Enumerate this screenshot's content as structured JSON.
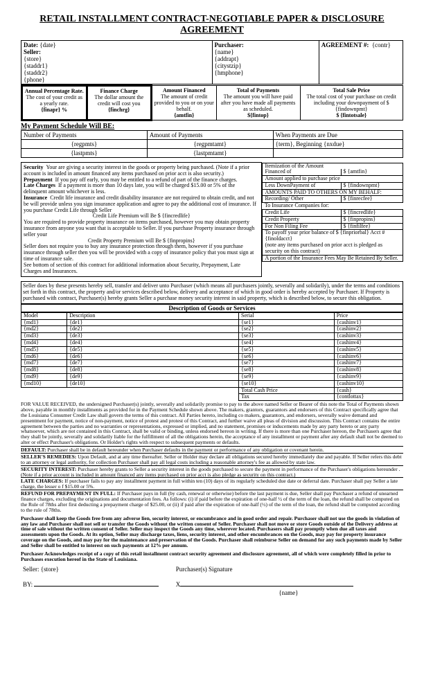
{
  "title": "RETAIL INSTALLMENT CONTRACT-NEGOTIABLE PAPER & DISCLOSURE AGREEMENT",
  "top": {
    "date_label": "Date:",
    "date": "{date}",
    "seller_label": "Seller:",
    "store": "{store}",
    "staddr1": "{staddr1}",
    "staddr2": "{staddr2}",
    "phone": "{phone}",
    "purchaser_label": "Purchaser:",
    "name": "{name}",
    "addrapt": "{addrapt}",
    "citystzip": "{citystzip}",
    "hmphone": "{hmphone}",
    "agreement_label": "AGREEMENT #:",
    "contr": "{contr}"
  },
  "fed": {
    "apr_title": "Annual Percentage Rate.",
    "apr_desc": "The cost of your credit as a yearly rate.",
    "apr_val": "{finapr}  %",
    "fc_title": "Finance Charge",
    "fc_desc": "The dollar amount the credit will cost you",
    "fc_val": "{finchrg}",
    "af_title": "Amount Financed",
    "af_desc": "The amount of credit provided to you or on your behalf.",
    "af_val": "{amtfin}",
    "top_title": "Total of Payments",
    "top_desc": "The amount you will have paid after you have made all payments as scheduled.",
    "top_val": "${fintop}",
    "tsp_title": "Total Sale Price",
    "tsp_desc": "The total cost of your purchase on credit including your downpayment of $ {findownpmt}",
    "tsp_val": "$ {fintotsale}"
  },
  "sched": {
    "header": "My Payment Schedule Will BE:",
    "col1": "Number of Payments",
    "col2": "Amount of Payments",
    "col3": "When Payments are Due",
    "r1a": "{regpmts}",
    "r1b": "{regpmtamt}",
    "r1c_a": "{term}",
    "r1c_b": ", Beginning ",
    "r1c_c": "{nxdue}",
    "r2a": "{lastpmts}",
    "r2b": "{lastpmtamt}"
  },
  "sec": {
    "security_l": "Security",
    "security": "Your are giving a security interest in the goods or property being purchased.  (Note if a prior account is included in amount financed any items purchased on prior acct is also security.)",
    "prepay_l": "Prepayment",
    "prepay": "If you pay off early, you may be entitled to a refund of part of the finance charges.",
    "late_l": "Late Charges",
    "late": "If a payment is more than 10 days late, you will be charged $15.00 or 5% of the delinquent amount whichever is less.",
    "ins_l": "Insurance",
    "ins1": "Credit life insurance and credit disability insurance are not required to obtain credit, and not be will provide unless you sign insurance application  and agree to pay the additional cost of insurance.      If you purchase Credit Life through Seller",
    "clife": "Credit Life Premium will Be  $ {fincredlife}",
    "ins2": "You are required to provide property insurance on items purchased, however you may obtain property insurance from anyone you want that is acceptable to Seller.   If you purchase Property insurance through seller your",
    "cprop": "Credit Property Premium will Be  $ {finpropins}",
    "ins3": "Seller does not require you to buy any insurance protection through them, however if you purchase insurance through seller then you will be provided with a copy of insurance policy that you must sign at time of insurance sale.",
    "ins4": "See bottom of section of this contract for additional information about Security, Prepayment, Late Charges and Insurances."
  },
  "item": {
    "h1": "Itemization of the Amount",
    "h2a": "Financed of",
    "h2b": "$     {amtfin}",
    "r1": "Amount applied to purchase price",
    "r2a": "Less DownPayment of",
    "r2b": "$  {findownpmt}",
    "r3": "AMOUNTS PAID TO OTHERS ON MY BEHALF:",
    "r4a": "Recording/ Other",
    "r4b": "$ {finrecfee}",
    "r5": "To Insurance Companies for:",
    "r6a": "Credit Life",
    "r6b": "$  {fincredlife}",
    "r7a": "Credit Property",
    "r7b": "$  {finpropins}",
    "r8a": "For Non Filing  Fee",
    "r8b": "$ {finfilfee}",
    "r9": "To payoff your prior balance of  $ {finpriorbal} Acct # {finoldacct}",
    "r10": "(note any items purchased on prior acct is pledged as security on this contract)",
    "r11": "A portion of the Insurance Fees May Be Retained By Seller."
  },
  "grant": "Seller does by these presents hereby sell, transfer and deliver unto Purchaser (which means all purchasers jointly, severally and solidarily), under the terms and conditions set forth in this contract, the property and/or services described below, delivery and acceptance of which in good order is hereby accepted by Purchaser.  If Property is purchased with contract, Purchaser(s) hereby grants Seller a purchase money security interest in said property, which is described below, to secure this obligation.",
  "goods": {
    "header": "Description of Goods or Services",
    "cols": {
      "model": "Model",
      "desc": "Description",
      "serial": "Serial",
      "price": "Price"
    },
    "rows": [
      {
        "m": "{md1}",
        "d": "{de1}",
        "s": "{se1}",
        "p": "{cashinv1}"
      },
      {
        "m": "{md2}",
        "d": "{de2}",
        "s": "{se2}",
        "p": "{cashinv2}"
      },
      {
        "m": "{md3}",
        "d": "{de3}",
        "s": "{se3}",
        "p": "{cashinv3}"
      },
      {
        "m": "{md4}",
        "d": "{de4}",
        "s": "{se4}",
        "p": "{cashinv4}"
      },
      {
        "m": "{md5}",
        "d": "{de5}",
        "s": "{se5}",
        "p": "{cashinv5}"
      },
      {
        "m": "{md6}",
        "d": "{de6}",
        "s": "{se6}",
        "p": "{cashinv6}"
      },
      {
        "m": "{md7}",
        "d": "{de7}",
        "s": "{se7}",
        "p": "{cashinv7}"
      },
      {
        "m": "{md8}",
        "d": "{de8}",
        "s": "{se8}",
        "p": "{cashinv8}"
      },
      {
        "m": "{md9}",
        "d": "{de9}",
        "s": "{se9}",
        "p": "{cashinv9}"
      },
      {
        "m": "{md10}",
        "d": "{de10}",
        "s": "{se10}",
        "p": "{cashinv10}"
      }
    ],
    "tcp_l": "Total Cash Price",
    "tcp": "{cash}",
    "tax_l": "Tax",
    "tax": "{contlottax}"
  },
  "legal": {
    "p1": "FOR VALUE RECEIVED, the undersigned Purchaser(s) jointly, severally and solidarily promise to pay to the above named Seller or Bearer of this note the Total of Payments shown above, payable in monthly installments as provided for in the  Payment Schedule shown above.  The makers, grantors, guarantors and endorsers of this Contract specifically agree that the Louisiana Consumer Credit Law shall govern the terms of this contract.  All Parties hereto, including co makers, guarantors, and endorsers, severally waive demand and presentment for payment, notice of non-payment, notice of protest and protest of this Contract, and further waive all pleas of division and discussion.  This Contract contains the entire agreement between the parties and no warranties or representations, expressed or implied, and no statement, promises or  inducements made by any party hereto or any party whatsoever, which are not contained in this Contract, shall be valid or binding, unless endorsed hereon in writing.  If there is more than one Purchaser hereon, the Purchasers agree that they shall be jointly, severally and solidarily liable for the fulfillment of all the obligations herein, the acceptance of any installment or payment after any default shall not be deemed to alter or effect Purchaser's obligations. Or Holder's rights with respect to subsequent payments or defaults.",
    "p2l": "DEFAULT:",
    "p2": "Purchaser shall be in default hereunder when Purchaser defaults in the payment or performance of any obligation or covenant herein.",
    "p3l": "SELLER'S REMEDIES:",
    "p3": "Upon Default, and at any time thereafter. Seller or Holder may declare all obligations secured hereby immediately due and payable.  If Seller refers this debt to an attorney or legal authority, for collection Purchaser shall pay all legal costs including a reasonable attorney's fee as allowed by state law.",
    "p4l": "SECURITY INTEREST:",
    "p4": "Purchaser hereby grants to Seller a security interest in the goods purchased to secure the payment in performance of the Purchaser's obligations hereunder . (Note if a prior account is included in amount financed any items purchased on prior acct is also pledge as security on this contract.)",
    "p5l": "LATE CHARGES:",
    "p5": "If purchaser fails to pay any installment payment in full within ten (10) days of its regularly scheduled due date or deferral date. Purchaser shall pay Seller a late charge, the lesser o f $15.00 or 5%.",
    "p6l": "REFUND FOR PREPAYMENT IN FULL:",
    "p6": "If Purchaser pays in full (by cash, renewal or otherwise) before the last payment is due, Seller shall pay Purchaser a refund of unearned finance charges, excluding the originations and documentation fees. As follows: (i) if paid before the expiration of one-half ½ of the term of the loan, the refund shall be computed on the Rule of 78ths after first deducting a prepayment charge of $25.00, or (ii) if paid after the expiration of one-half (½) of the term of the loan, the refund shall be computed according to the rule of 78ths.",
    "p7": "Purchaser shall keep the Goods free from any adverse lien, security interest, or encumbrance and in good order and repair.  Purchaser shall not use the goods in violation of any law and Purchaser shall not sell or transfer the Goods without the written consent of Seller.  Purchaser shall not move or store Goods outside of the Delivery address at time of sale without the written consent of Seller.  Seller may inspect the Goods any time, wherever located.  Purchasers shall pay promptly when due all taxes and assessments upon the Goods.  At its option, Seller may discharge taxes, liens, security interest, and other encumbrances on the Goods, may pay for property insurance coverage on the Goods, and may pay for the maintenance and preservation of the Goods.  Purchaser shall reimburse Seller on demand for any such payments made by Seller and Seller shall be entitled to interest on such payments at 12% per annum.",
    "p8": "Purchaser Acknowledges receipt of a copy of this retail installment contract security agreement and disclosure agreement, all of which were completely filled in prior to Purchases execution hereof in the State of Louisiana."
  },
  "sig": {
    "seller_l": "Seller:",
    "seller": "{store}",
    "psig": "Purchaser(s) Signature",
    "by": "BY:",
    "x": "X",
    "name": "{name}"
  }
}
